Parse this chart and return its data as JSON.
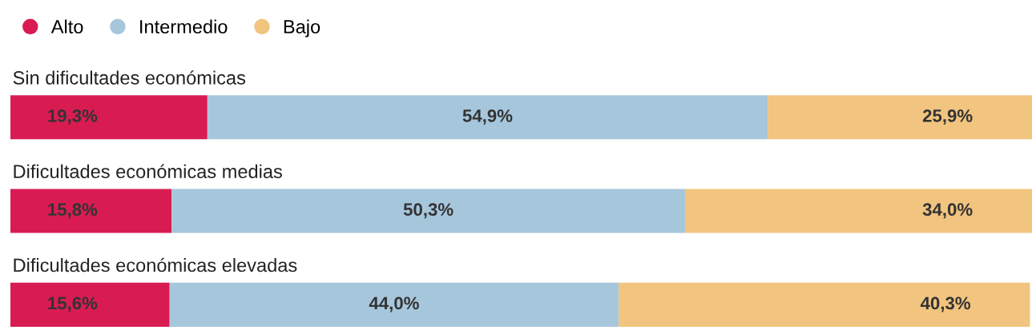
{
  "chart_data": {
    "type": "bar",
    "orientation": "horizontal",
    "stacked": true,
    "categories": [
      "Sin dificultades económicas",
      "Dificultades económicas medias",
      "Dificultades económicas elevadas"
    ],
    "xlim": [
      0,
      100.1
    ],
    "series": [
      {
        "name": "Alto",
        "color": "#d81c52",
        "values": [
          19.3,
          15.8,
          15.6
        ],
        "value_labels": [
          "19,3%",
          "15,8%",
          "15,6%"
        ]
      },
      {
        "name": "Intermedio",
        "color": "#a6c6dc",
        "values": [
          54.9,
          50.3,
          44.0
        ],
        "value_labels": [
          "54,9%",
          "50,3%",
          "44,0%"
        ]
      },
      {
        "name": "Bajo",
        "color": "#f1c47f",
        "values": [
          25.9,
          34.0,
          40.3
        ],
        "value_labels": [
          "25,9%",
          "34,0%",
          "40,3%"
        ]
      }
    ],
    "legend": "top left"
  }
}
